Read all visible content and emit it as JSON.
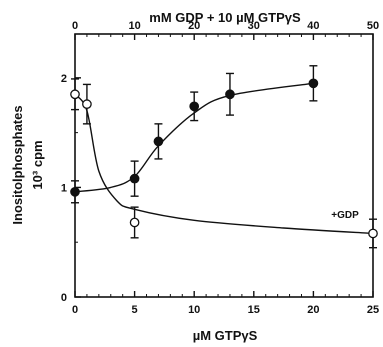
{
  "chart_data": {
    "type": "scatter",
    "title": "",
    "xlabel": "µM GTPγS",
    "x2label": "mM GDP + 10 µM GTPγS",
    "ylabel": "Inositolphosphates",
    "ylabel2": "10³ cpm",
    "xlim": [
      0,
      25
    ],
    "x2lim": [
      0,
      50
    ],
    "ylim": [
      0,
      2.4
    ],
    "xticks": [
      0,
      5,
      10,
      15,
      20,
      25
    ],
    "x2ticks": [
      0,
      10,
      20,
      30,
      40,
      50
    ],
    "yticks": [
      0,
      1,
      2
    ],
    "grid": false,
    "series": [
      {
        "name": "",
        "marker": "filled-circle",
        "axis": "bottom",
        "points": [
          {
            "x": 0,
            "y": 0.96,
            "err": 0.1
          },
          {
            "x": 5,
            "y": 1.08,
            "err": 0.16
          },
          {
            "x": 7,
            "y": 1.42,
            "err": 0.16
          },
          {
            "x": 10,
            "y": 1.74,
            "err": 0.13
          },
          {
            "x": 13,
            "y": 1.85,
            "err": 0.19
          },
          {
            "x": 20,
            "y": 1.95,
            "err": 0.16
          }
        ]
      },
      {
        "name": "",
        "marker": "open-circle",
        "axis": "top",
        "points": [
          {
            "x": 0,
            "y": 1.85,
            "err": 0.14
          },
          {
            "x": 2,
            "y": 1.76,
            "err": 0.18
          },
          {
            "x": 10,
            "y": 0.68,
            "err": 0.14
          },
          {
            "x": 50,
            "y": 0.58,
            "err": 0.13
          }
        ]
      }
    ],
    "annotations": [
      {
        "text": "+GDP",
        "x": 21.5,
        "y": 0.72
      }
    ]
  }
}
